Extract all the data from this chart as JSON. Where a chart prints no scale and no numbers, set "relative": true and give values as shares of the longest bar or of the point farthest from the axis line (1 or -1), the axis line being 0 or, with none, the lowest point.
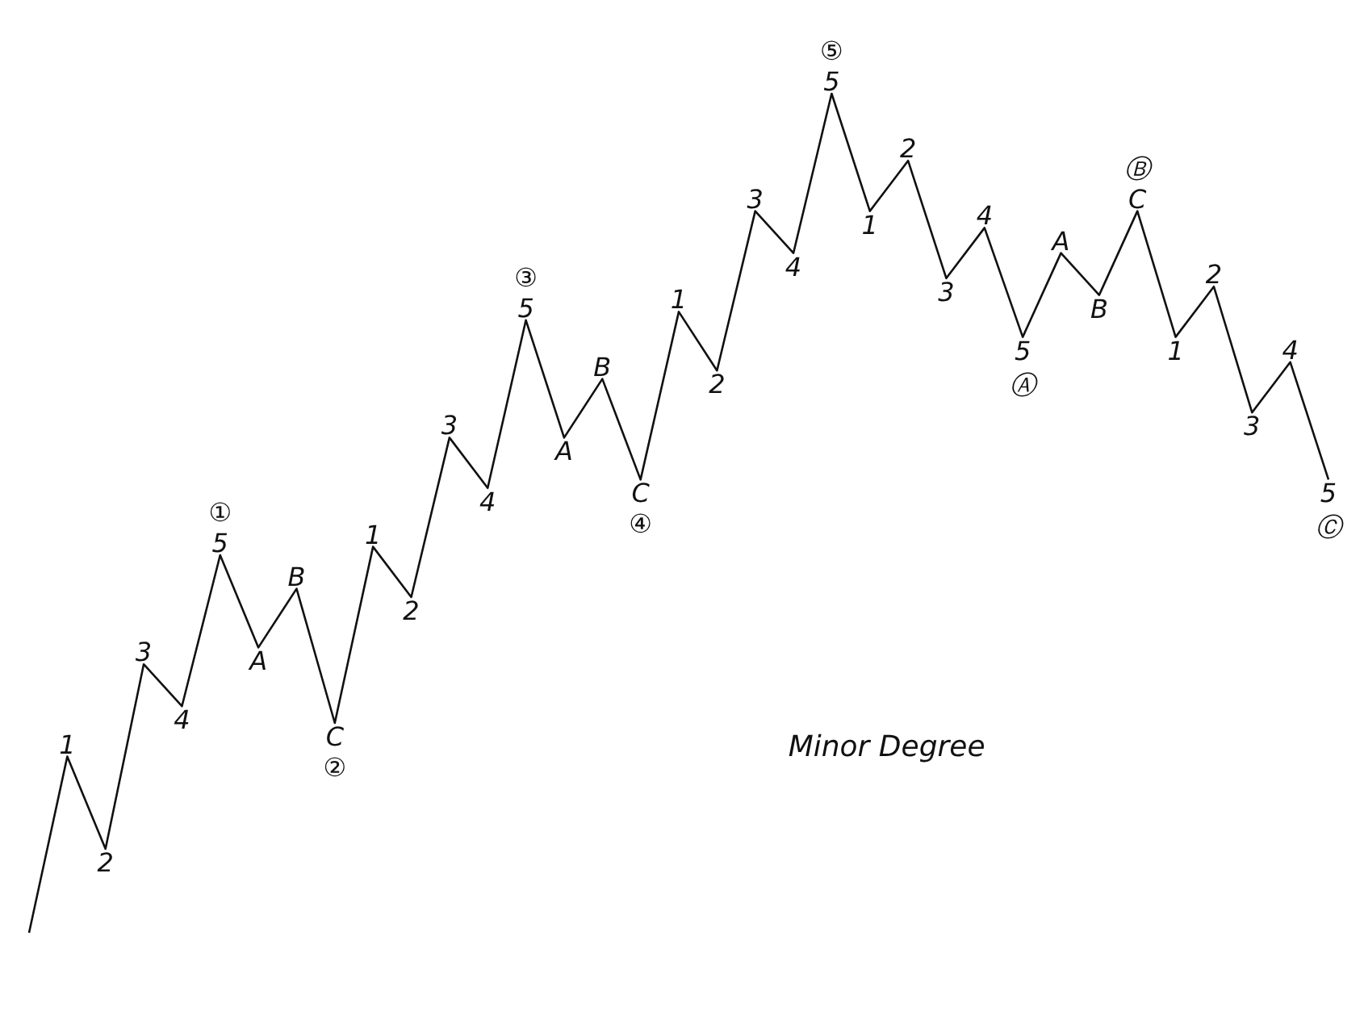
{
  "chart_data": {
    "type": "line",
    "relative": true,
    "legend": false,
    "marker": "none",
    "line_style": "solid",
    "categories": [
      null,
      null,
      null,
      null,
      null,
      null,
      null,
      null,
      null,
      null,
      null,
      null,
      null,
      null,
      null,
      null,
      null,
      null,
      null,
      null,
      null,
      null,
      null,
      null,
      null,
      null,
      null,
      null,
      null,
      null,
      null,
      null,
      null,
      null,
      null
    ],
    "series": [
      {
        "color": "#111111",
        "values": [
          0,
          0.21,
          0.1,
          0.32,
          0.27,
          0.45,
          0.34,
          0.41,
          0.25,
          0.46,
          0.4,
          0.59,
          0.53,
          0.73,
          0.59,
          0.66,
          0.54,
          0.74,
          0.67,
          0.86,
          0.81,
          1,
          0.86,
          0.92,
          0.78,
          0.84,
          0.71,
          0.81,
          0.76,
          0.86,
          0.71,
          0.77,
          0.62,
          0.68,
          0.54
        ]
      }
    ],
    "annotations": [
      "Minor Degree",
      {
        "text": "1",
        "y": 0.21
      },
      {
        "text": "2",
        "y": 0.1
      },
      {
        "text": "3",
        "y": 0.32
      },
      {
        "text": "4",
        "y": 0.27
      },
      {
        "text": "5",
        "y": 0.45
      },
      {
        "text": "①",
        "y": 0.45
      },
      {
        "text": "A",
        "y": 0.34
      },
      {
        "text": "B",
        "y": 0.41
      },
      {
        "text": "C",
        "y": 0.25
      },
      {
        "text": "②",
        "y": 0.25
      },
      {
        "text": "1",
        "y": 0.46
      },
      {
        "text": "2",
        "y": 0.4
      },
      {
        "text": "3",
        "y": 0.59
      },
      {
        "text": "4",
        "y": 0.53
      },
      {
        "text": "5",
        "y": 0.73
      },
      {
        "text": "③",
        "y": 0.73
      },
      {
        "text": "A",
        "y": 0.59
      },
      {
        "text": "B",
        "y": 0.66
      },
      {
        "text": "C",
        "y": 0.54
      },
      {
        "text": "④",
        "y": 0.54
      },
      {
        "text": "1",
        "y": 0.74
      },
      {
        "text": "2",
        "y": 0.67
      },
      {
        "text": "3",
        "y": 0.86
      },
      {
        "text": "4",
        "y": 0.81
      },
      {
        "text": "5",
        "y": 1
      },
      {
        "text": "⑤",
        "y": 1
      },
      {
        "text": "1",
        "y": 0.86
      },
      {
        "text": "2",
        "y": 0.92
      },
      {
        "text": "3",
        "y": 0.78
      },
      {
        "text": "4",
        "y": 0.84
      },
      {
        "text": "5",
        "y": 0.71
      },
      {
        "text": "Ⓐ",
        "y": 0.71
      },
      {
        "text": "A",
        "y": 0.81
      },
      {
        "text": "B",
        "y": 0.76
      },
      {
        "text": "C",
        "y": 0.86
      },
      {
        "text": "Ⓑ",
        "y": 0.86
      },
      {
        "text": "1",
        "y": 0.71
      },
      {
        "text": "2",
        "y": 0.77
      },
      {
        "text": "3",
        "y": 0.62
      },
      {
        "text": "4",
        "y": 0.68
      },
      {
        "text": "5",
        "y": 0.54
      },
      {
        "text": "Ⓒ",
        "y": 0.54
      }
    ]
  }
}
